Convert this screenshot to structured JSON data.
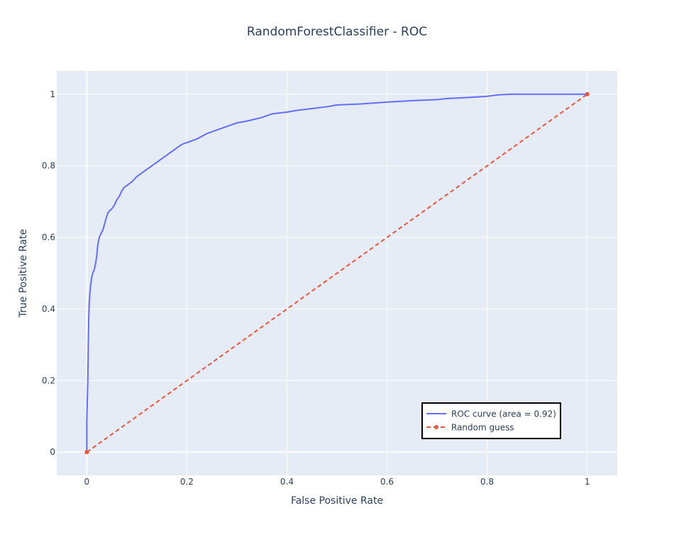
{
  "chart_data": {
    "type": "line",
    "title": "RandomForestClassifier - ROC",
    "xlabel": "False Positive Rate",
    "ylabel": "True Positive Rate",
    "xlim": [
      -0.06,
      1.06
    ],
    "ylim": [
      -0.065,
      1.065
    ],
    "xticks": [
      0,
      0.2,
      0.4,
      0.6,
      0.8,
      1
    ],
    "xtick_labels": [
      "0",
      "0.2",
      "0.4",
      "0.6",
      "0.8",
      "1"
    ],
    "yticks": [
      0,
      0.2,
      0.4,
      0.6,
      0.8,
      1
    ],
    "ytick_labels": [
      "0",
      "0.2",
      "0.4",
      "0.6",
      "0.8",
      "1"
    ],
    "grid": true,
    "legend_position": "bottom-right",
    "series": [
      {
        "name": "ROC curve (area = 0.92)",
        "color": "#636efa",
        "dash": "solid",
        "markers": false,
        "x": [
          0,
          0,
          0.002,
          0.003,
          0.004,
          0.005,
          0.006,
          0.008,
          0.01,
          0.012,
          0.015,
          0.018,
          0.02,
          0.022,
          0.025,
          0.028,
          0.032,
          0.036,
          0.04,
          0.043,
          0.046,
          0.05,
          0.055,
          0.06,
          0.065,
          0.07,
          0.075,
          0.08,
          0.09,
          0.1,
          0.11,
          0.12,
          0.13,
          0.14,
          0.15,
          0.16,
          0.17,
          0.18,
          0.19,
          0.2,
          0.22,
          0.24,
          0.26,
          0.28,
          0.3,
          0.32,
          0.35,
          0.37,
          0.4,
          0.42,
          0.45,
          0.48,
          0.5,
          0.55,
          0.6,
          0.65,
          0.7,
          0.72,
          0.75,
          0.8,
          0.82,
          0.85,
          0.9,
          0.95,
          1
        ],
        "y": [
          0,
          0.08,
          0.2,
          0.3,
          0.38,
          0.42,
          0.44,
          0.47,
          0.49,
          0.5,
          0.51,
          0.53,
          0.55,
          0.58,
          0.6,
          0.61,
          0.62,
          0.64,
          0.66,
          0.67,
          0.675,
          0.68,
          0.69,
          0.705,
          0.715,
          0.73,
          0.74,
          0.745,
          0.755,
          0.77,
          0.78,
          0.79,
          0.8,
          0.81,
          0.82,
          0.83,
          0.84,
          0.85,
          0.86,
          0.865,
          0.875,
          0.89,
          0.9,
          0.91,
          0.92,
          0.925,
          0.935,
          0.945,
          0.95,
          0.955,
          0.96,
          0.965,
          0.97,
          0.973,
          0.978,
          0.982,
          0.985,
          0.988,
          0.99,
          0.994,
          0.998,
          1,
          1,
          1,
          1
        ]
      },
      {
        "name": "Random guess",
        "color": "#ef553b",
        "dash": "dash",
        "markers": true,
        "x": [
          0,
          1
        ],
        "y": [
          0,
          1
        ]
      }
    ]
  }
}
